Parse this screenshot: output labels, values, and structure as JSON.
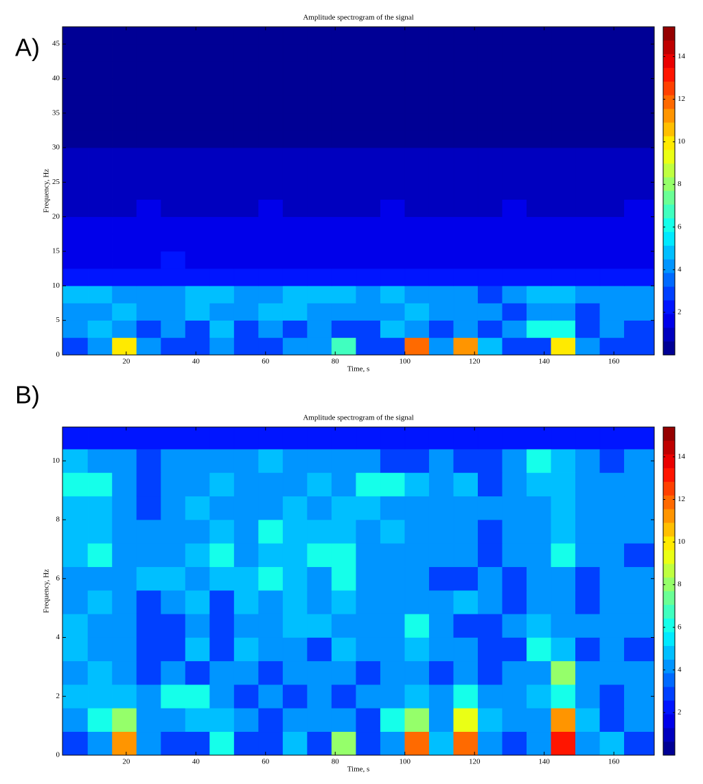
{
  "chart_data": [
    {
      "type": "heatmap",
      "panel_label": "A)",
      "title": "Amplitude spectrogram of the signal",
      "xlabel": "Time, s",
      "ylabel": "Frequency, Hz",
      "colormap": "jet",
      "xlim": [
        1.7,
        171.6
      ],
      "ylim": [
        0,
        47.5
      ],
      "clim": [
        0,
        15.4
      ],
      "xticks": [
        20,
        40,
        60,
        80,
        100,
        120,
        140,
        160
      ],
      "yticks": [
        0,
        5,
        10,
        15,
        20,
        25,
        30,
        35,
        40,
        45
      ],
      "cticks": [
        2,
        4,
        6,
        8,
        10,
        12,
        14
      ],
      "x": [
        5.5,
        12.5,
        19.5,
        26.5,
        33.5,
        40.5,
        47.5,
        54.5,
        61.5,
        68.5,
        75.5,
        82.5,
        89.5,
        96.5,
        103.5,
        110.5,
        117.5,
        124.5,
        131.5,
        138.5,
        145.5,
        152.5,
        159.5,
        166.5
      ],
      "y": [
        1.25,
        3.75,
        6.25,
        8.75,
        11.25,
        13.75,
        16.25,
        18.75,
        21.25,
        23.75,
        26.25,
        28.75,
        31.25,
        33.75,
        36.25,
        38.75,
        41.25,
        43.75,
        46.25
      ],
      "z": [
        [
          3,
          4,
          10,
          4,
          3,
          3,
          4,
          3,
          3,
          4,
          4,
          7,
          3,
          3,
          12,
          4,
          11,
          5,
          3,
          3,
          10,
          4,
          3,
          3
        ],
        [
          4,
          5,
          4,
          3,
          4,
          3,
          5,
          3,
          4,
          3,
          4,
          3,
          3,
          5,
          4,
          3,
          4,
          3,
          4,
          6,
          6,
          3,
          4,
          3
        ],
        [
          4,
          4,
          5,
          4,
          4,
          5,
          4,
          4,
          5,
          5,
          4,
          4,
          4,
          4,
          5,
          4,
          4,
          4,
          3,
          4,
          4,
          3,
          4,
          4
        ],
        [
          5,
          5,
          4,
          4,
          4,
          5,
          5,
          4,
          4,
          5,
          5,
          5,
          4,
          5,
          4,
          4,
          4,
          3,
          4,
          5,
          5,
          4,
          4,
          4
        ],
        [
          2.2,
          2,
          2,
          2.3,
          2,
          2,
          2.1,
          2,
          2.2,
          2,
          2,
          2.1,
          2,
          2.2,
          2,
          2,
          2.1,
          2,
          2,
          2.2,
          2,
          2,
          2.1,
          2
        ],
        [
          1.8,
          1.9,
          1.7,
          1.8,
          2,
          1.8,
          1.7,
          1.9,
          1.8,
          1.8,
          1.7,
          1.9,
          1.8,
          1.8,
          1.9,
          1.7,
          1.8,
          1.8,
          1.9,
          1.8,
          1.7,
          1.8,
          1.9,
          1.8
        ],
        [
          1.6,
          1.5,
          1.7,
          1.6,
          1.6,
          1.5,
          1.7,
          1.6,
          1.5,
          1.6,
          1.7,
          1.6,
          1.5,
          1.6,
          1.6,
          1.7,
          1.5,
          1.6,
          1.6,
          1.5,
          1.7,
          1.6,
          1.5,
          1.6
        ],
        [
          1.4,
          1.3,
          1.4,
          1.5,
          1.3,
          1.4,
          1.4,
          1.3,
          1.5,
          1.4,
          1.3,
          1.4,
          1.4,
          1.5,
          1.3,
          1.4,
          1.4,
          1.3,
          1.4,
          1.5,
          1.4,
          1.3,
          1.4,
          1.4
        ],
        [
          1.2,
          1.1,
          1.2,
          1.3,
          1.2,
          1.1,
          1.2,
          1.2,
          1.3,
          1.1,
          1.2,
          1.2,
          1.1,
          1.3,
          1.2,
          1.2,
          1.1,
          1.2,
          1.3,
          1.2,
          1.1,
          1.2,
          1.2,
          1.3
        ],
        [
          1,
          1.1,
          1,
          0.9,
          1,
          1.1,
          1,
          1,
          0.9,
          1.1,
          1,
          1,
          1.1,
          0.9,
          1,
          1,
          1.1,
          1,
          0.9,
          1,
          1.1,
          1,
          1,
          0.9
        ],
        [
          0.9,
          0.8,
          0.9,
          1,
          0.9,
          0.8,
          0.9,
          0.9,
          1,
          0.8,
          0.9,
          0.9,
          0.8,
          1,
          0.9,
          0.9,
          0.8,
          0.9,
          1,
          0.9,
          0.8,
          0.9,
          0.9,
          1
        ],
        [
          0.8,
          0.7,
          0.8,
          0.8,
          0.7,
          0.8,
          0.8,
          0.7,
          0.8,
          0.8,
          0.7,
          0.8,
          0.8,
          0.7,
          0.8,
          0.8,
          0.7,
          0.8,
          0.8,
          0.7,
          0.8,
          0.8,
          0.7,
          0.8
        ],
        [
          0.6,
          0.6,
          0.5,
          0.6,
          0.6,
          0.5,
          0.6,
          0.6,
          0.5,
          0.6,
          0.6,
          0.5,
          0.6,
          0.6,
          0.5,
          0.6,
          0.6,
          0.5,
          0.6,
          0.6,
          0.5,
          0.6,
          0.6,
          0.5
        ],
        [
          0.5,
          0.4,
          0.5,
          0.5,
          0.4,
          0.5,
          0.5,
          0.4,
          0.5,
          0.5,
          0.4,
          0.5,
          0.5,
          0.4,
          0.5,
          0.5,
          0.4,
          0.5,
          0.5,
          0.4,
          0.5,
          0.5,
          0.4,
          0.5
        ],
        [
          0.3,
          0.3,
          0.3,
          0.3,
          0.3,
          0.3,
          0.3,
          0.3,
          0.3,
          0.3,
          0.3,
          0.3,
          0.3,
          0.3,
          0.3,
          0.3,
          0.3,
          0.3,
          0.3,
          0.3,
          0.3,
          0.3,
          0.3,
          0.3
        ],
        [
          0.3,
          0.3,
          0.3,
          0.3,
          0.3,
          0.3,
          0.3,
          0.3,
          0.3,
          0.3,
          0.3,
          0.3,
          0.3,
          0.3,
          0.3,
          0.3,
          0.3,
          0.3,
          0.3,
          0.3,
          0.3,
          0.3,
          0.3,
          0.3
        ],
        [
          0.3,
          0.3,
          0.3,
          0.3,
          0.3,
          0.3,
          0.3,
          0.3,
          0.3,
          0.3,
          0.3,
          0.3,
          0.3,
          0.3,
          0.3,
          0.3,
          0.3,
          0.3,
          0.3,
          0.3,
          0.3,
          0.3,
          0.3,
          0.3
        ],
        [
          0.3,
          0.3,
          0.3,
          0.3,
          0.3,
          0.3,
          0.3,
          0.3,
          0.3,
          0.3,
          0.3,
          0.3,
          0.3,
          0.3,
          0.3,
          0.3,
          0.3,
          0.3,
          0.3,
          0.3,
          0.3,
          0.3,
          0.3,
          0.3
        ],
        [
          0.3,
          0.3,
          0.3,
          0.3,
          0.3,
          0.3,
          0.3,
          0.3,
          0.3,
          0.3,
          0.3,
          0.3,
          0.3,
          0.3,
          0.3,
          0.3,
          0.3,
          0.3,
          0.3,
          0.3,
          0.3,
          0.3,
          0.3,
          0.3
        ]
      ]
    },
    {
      "type": "heatmap",
      "panel_label": "B)",
      "title": "Amplitude spectrogram of the signal",
      "xlabel": "Time, s",
      "ylabel": "Frequency, Hz",
      "colormap": "jet",
      "xlim": [
        1.7,
        171.6
      ],
      "ylim": [
        0,
        11.15
      ],
      "clim": [
        0,
        15.4
      ],
      "xticks": [
        20,
        40,
        60,
        80,
        100,
        120,
        140,
        160
      ],
      "yticks": [
        0,
        2,
        4,
        6,
        8,
        10
      ],
      "cticks": [
        2,
        4,
        6,
        8,
        10,
        12,
        14
      ],
      "x": [
        5.5,
        12.5,
        19.5,
        26.5,
        33.5,
        40.5,
        47.5,
        54.5,
        61.5,
        68.5,
        75.5,
        82.5,
        89.5,
        96.5,
        103.5,
        110.5,
        117.5,
        124.5,
        131.5,
        138.5,
        145.5,
        152.5,
        159.5,
        166.5
      ],
      "y": [
        0.4,
        1.2,
        2,
        2.8,
        3.6,
        4.4,
        5.2,
        6,
        6.8,
        7.6,
        8.4,
        9.2,
        10,
        10.8
      ],
      "z": [
        [
          3,
          4,
          11,
          4,
          3,
          3,
          6,
          3,
          3,
          5,
          3,
          8,
          3,
          4,
          12,
          5,
          12,
          4,
          3,
          4,
          13,
          4,
          5,
          3
        ],
        [
          4,
          6,
          8,
          4,
          4,
          5,
          5,
          4,
          3,
          4,
          4,
          4,
          3,
          6,
          8,
          4,
          9,
          5,
          4,
          4,
          11,
          5,
          3,
          4
        ],
        [
          5,
          5,
          5,
          4,
          6,
          6,
          4,
          3,
          4,
          3,
          4,
          3,
          4,
          4,
          5,
          4,
          6,
          4,
          4,
          5,
          6,
          4,
          3,
          4
        ],
        [
          4,
          5,
          4,
          3,
          4,
          3,
          4,
          4,
          3,
          4,
          4,
          4,
          3,
          4,
          4,
          3,
          4,
          3,
          4,
          4,
          8,
          4,
          4,
          4
        ],
        [
          5,
          4,
          4,
          3,
          3,
          5,
          3,
          5,
          4,
          4,
          3,
          5,
          4,
          4,
          5,
          4,
          4,
          3,
          3,
          6,
          5,
          3,
          4,
          3
        ],
        [
          5,
          4,
          4,
          3,
          3,
          4,
          3,
          4,
          4,
          5,
          5,
          4,
          4,
          4,
          6,
          4,
          3,
          3,
          4,
          5,
          4,
          4,
          4,
          4
        ],
        [
          4,
          5,
          4,
          3,
          4,
          5,
          3,
          5,
          4,
          5,
          4,
          5,
          4,
          4,
          4,
          4,
          5,
          4,
          3,
          4,
          4,
          3,
          4,
          4
        ],
        [
          4,
          4,
          4,
          5,
          5,
          4,
          5,
          5,
          6,
          5,
          4,
          6,
          4,
          4,
          4,
          3,
          3,
          4,
          3,
          4,
          4,
          3,
          4,
          4
        ],
        [
          5,
          6,
          4,
          4,
          4,
          5,
          6,
          4,
          5,
          5,
          6,
          6,
          4,
          4,
          4,
          4,
          4,
          3,
          4,
          4,
          6,
          4,
          4,
          3
        ],
        [
          5,
          5,
          4,
          4,
          4,
          4,
          5,
          4,
          6,
          5,
          5,
          5,
          4,
          5,
          4,
          4,
          4,
          3,
          4,
          4,
          5,
          4,
          4,
          4
        ],
        [
          5,
          5,
          4,
          3,
          4,
          5,
          4,
          4,
          4,
          5,
          4,
          5,
          5,
          4,
          4,
          4,
          4,
          4,
          4,
          4,
          5,
          4,
          4,
          4
        ],
        [
          6,
          6,
          4,
          3,
          4,
          4,
          5,
          4,
          4,
          4,
          5,
          4,
          6,
          6,
          5,
          4,
          5,
          3,
          4,
          5,
          5,
          4,
          4,
          4
        ],
        [
          5,
          4,
          4,
          3,
          4,
          4,
          4,
          4,
          5,
          4,
          4,
          4,
          4,
          3,
          3,
          4,
          3,
          3,
          4,
          6,
          5,
          4,
          3,
          4
        ],
        [
          2,
          2,
          2,
          2,
          2,
          2,
          2,
          2,
          2,
          2,
          2,
          2,
          2,
          2,
          2,
          2,
          2,
          2,
          2,
          2,
          2,
          2,
          2,
          2
        ]
      ]
    }
  ]
}
